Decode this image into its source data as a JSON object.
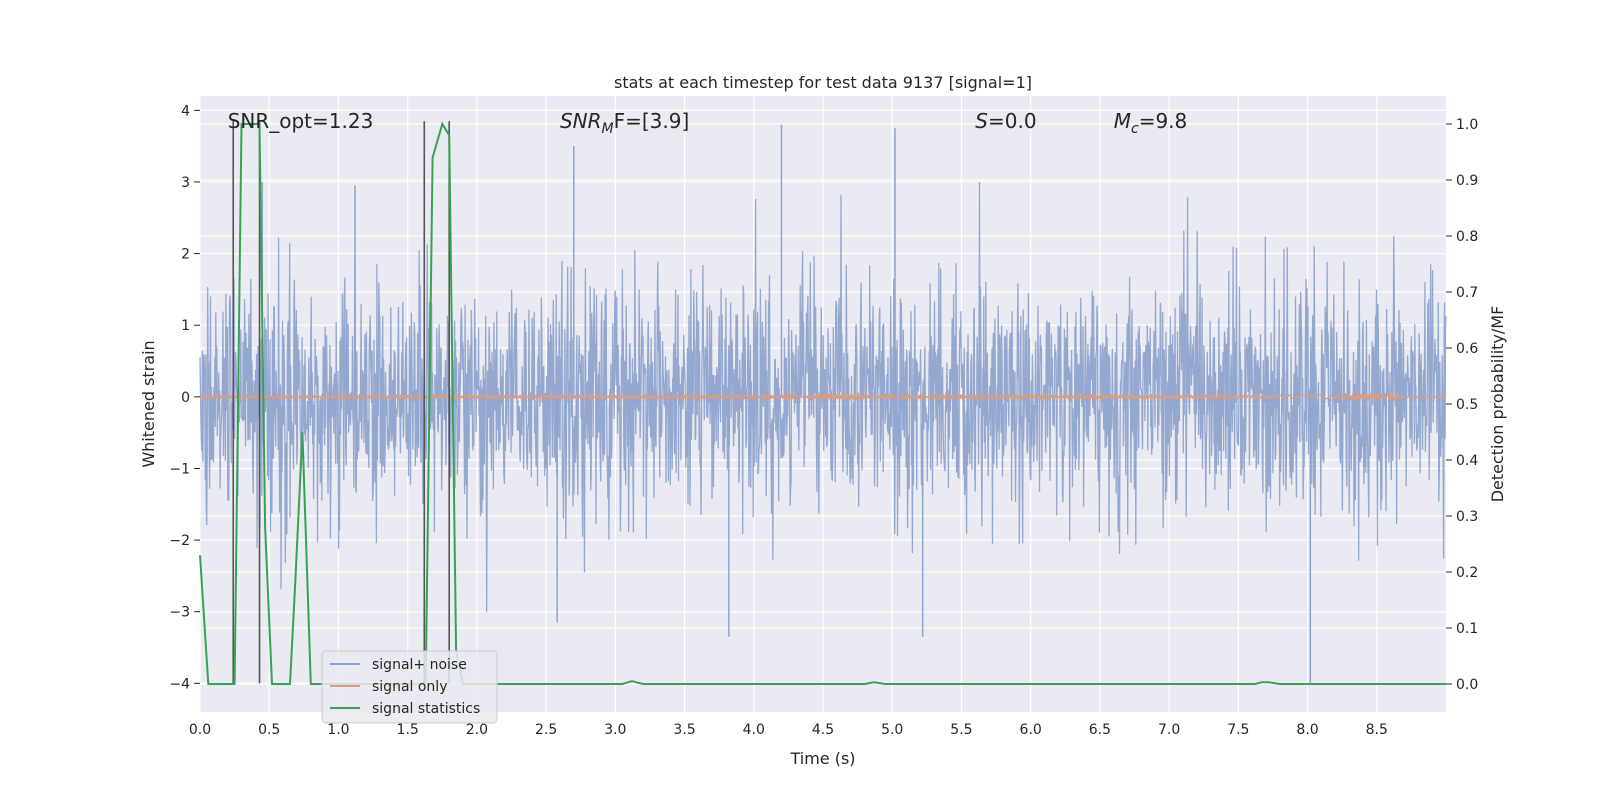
{
  "chart_data": {
    "type": "line",
    "title": "stats at each timestep for test data 9137 [signal=1]",
    "xlabel": "Time (s)",
    "ylabel_left": "Whitened strain",
    "ylabel_right": "Detection probability/MF",
    "xlim": [
      0,
      9.0
    ],
    "ylim_left": [
      -4.4,
      4.2
    ],
    "ylim_right": [
      -0.05,
      1.05
    ],
    "x_ticks": [
      0.0,
      0.5,
      1.0,
      1.5,
      2.0,
      2.5,
      3.0,
      3.5,
      4.0,
      4.5,
      5.0,
      5.5,
      6.0,
      6.5,
      7.0,
      7.5,
      8.0,
      8.5
    ],
    "x_tick_labels": [
      "0.0",
      "0.5",
      "1.0",
      "1.5",
      "2.0",
      "2.5",
      "3.0",
      "3.5",
      "4.0",
      "4.5",
      "5.0",
      "5.5",
      "6.0",
      "6.5",
      "7.0",
      "7.5",
      "8.0",
      "8.5"
    ],
    "y_left_ticks": [
      -4,
      -3,
      -2,
      -1,
      0,
      1,
      2,
      3,
      4
    ],
    "y_left_tick_labels": [
      "−4",
      "−3",
      "−2",
      "−1",
      "0",
      "1",
      "2",
      "3",
      "4"
    ],
    "y_right_ticks": [
      0.0,
      0.1,
      0.2,
      0.3,
      0.4,
      0.5,
      0.6,
      0.7,
      0.8,
      0.9,
      1.0
    ],
    "y_right_tick_labels": [
      "0.0",
      "0.1",
      "0.2",
      "0.3",
      "0.4",
      "0.5",
      "0.6",
      "0.7",
      "0.8",
      "0.9",
      "1.0"
    ],
    "grid": true,
    "legend_placement": "lower-left",
    "annotations": [
      {
        "text": "SNR_opt=1.23",
        "x": 0.2,
        "y": 3.85
      },
      {
        "text": "SNR",
        "sub": "M",
        "suffix": "F=[3.9]",
        "italic": true,
        "x": 2.6,
        "y": 3.85
      },
      {
        "text": "S",
        "suffix": "=0.0",
        "italic": true,
        "x": 5.6,
        "y": 3.85
      },
      {
        "text": "M",
        "sub": "c",
        "suffix": "=9.8",
        "italic": true,
        "x": 6.6,
        "y": 3.85
      }
    ],
    "series": [
      {
        "name": "signal+ noise",
        "axis": "left",
        "color": "#8fa3cc",
        "kind": "noise",
        "band_std": 0.8,
        "noteworthy_peaks": [
          {
            "x": 0.45,
            "y": 3.0
          },
          {
            "x": 1.12,
            "y": 2.95
          },
          {
            "x": 2.7,
            "y": 3.5
          },
          {
            "x": 4.2,
            "y": 3.8
          },
          {
            "x": 5.02,
            "y": 3.75
          },
          {
            "x": 3.82,
            "y": -3.35
          },
          {
            "x": 8.02,
            "y": -4.0
          },
          {
            "x": 5.22,
            "y": -3.35
          },
          {
            "x": 2.58,
            "y": -3.15
          }
        ]
      },
      {
        "name": "signal only",
        "axis": "left",
        "color": "#dd9c7c",
        "kind": "chirp",
        "t_merger": 8.65,
        "peak_amplitude": 0.18
      },
      {
        "name": "signal statistics",
        "axis": "right",
        "color": "#3aa055",
        "kind": "line",
        "x": [
          0.0,
          0.06,
          0.12,
          0.2,
          0.25,
          0.3,
          0.33,
          0.38,
          0.43,
          0.47,
          0.52,
          0.57,
          0.65,
          0.69,
          0.74,
          0.8,
          0.88,
          1.0,
          1.2,
          1.4,
          1.55,
          1.6,
          1.63,
          1.68,
          1.75,
          1.8,
          1.85,
          1.9,
          2.0,
          2.2,
          3.05,
          3.12,
          3.2,
          4.8,
          4.87,
          4.95,
          7.62,
          7.67,
          7.72,
          7.8,
          9.0
        ],
        "y": [
          0.23,
          0.0,
          0.0,
          0.0,
          0.0,
          1.0,
          1.0,
          1.0,
          1.0,
          0.28,
          0.0,
          0.0,
          0.0,
          0.19,
          0.45,
          0.0,
          0.0,
          0.0,
          0.0,
          0.0,
          0.0,
          0.0,
          0.0,
          0.94,
          1.0,
          0.98,
          0.06,
          0.0,
          0.0,
          0.0,
          0.0,
          0.005,
          0.0,
          0.0,
          0.003,
          0.0,
          0.0,
          0.003,
          0.003,
          0.0,
          0.0
        ]
      }
    ],
    "vertical_markers": {
      "color": "#555555",
      "x": [
        0.24,
        0.43,
        1.62,
        1.8
      ],
      "y_top": 3.85,
      "y_bottom": -4.0
    }
  }
}
